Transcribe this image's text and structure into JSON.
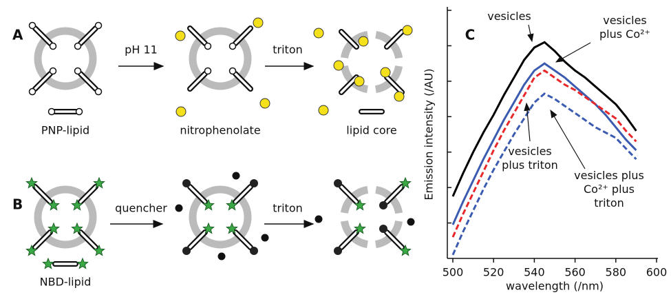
{
  "diagram": {
    "panel_a": {
      "label": "A",
      "step1": "pH 11",
      "step2": "triton",
      "lipid": "PNP-lipid",
      "middle": "nitrophenolate",
      "right": "lipid core"
    },
    "panel_b": {
      "label": "B",
      "step1": "quencher",
      "step2": "triton",
      "lipid": "NBD-lipid"
    }
  },
  "chart_data": {
    "type": "line",
    "panel_label": "C",
    "x_label": "wavelength (/nm)",
    "y_label": "Emission intensity (/AU)",
    "x": [
      500,
      505,
      510,
      515,
      520,
      525,
      530,
      535,
      540,
      545,
      550,
      555,
      560,
      565,
      570,
      575,
      580,
      585,
      590
    ],
    "xlim": [
      500,
      600
    ],
    "xticks": [
      500,
      520,
      540,
      560,
      580,
      600
    ],
    "ylim": [
      0,
      7
    ],
    "yticks": [
      1,
      2,
      3,
      4,
      5,
      6,
      7
    ],
    "series": [
      {
        "name": "vesicles",
        "color": "#000000",
        "dashed": false,
        "values": [
          1.75,
          2.4,
          3.0,
          3.55,
          4.05,
          4.6,
          5.1,
          5.6,
          5.95,
          6.1,
          5.85,
          5.55,
          5.3,
          5.1,
          4.85,
          4.6,
          4.35,
          4.0,
          3.6
        ]
      },
      {
        "name": "vesicles plus Co²⁺",
        "color": "#3b5bb0",
        "dashed": false,
        "values": [
          0.95,
          1.6,
          2.2,
          2.8,
          3.35,
          3.9,
          4.4,
          4.9,
          5.3,
          5.5,
          5.3,
          5.1,
          4.85,
          4.6,
          4.35,
          4.05,
          3.7,
          3.35,
          3.05
        ]
      },
      {
        "name": "vesicles plus triton",
        "color": "#e8282b",
        "dashed": true,
        "values": [
          0.6,
          1.25,
          1.85,
          2.45,
          3.05,
          3.6,
          4.1,
          4.6,
          5.1,
          5.3,
          5.1,
          4.9,
          4.75,
          4.55,
          4.35,
          4.15,
          3.95,
          3.6,
          3.3
        ]
      },
      {
        "name": "vesicles plus Co²⁺ plus triton",
        "color": "#3b5bb0",
        "dashed": true,
        "values": [
          0.1,
          0.75,
          1.35,
          1.95,
          2.5,
          3.0,
          3.5,
          3.95,
          4.4,
          4.65,
          4.5,
          4.3,
          4.1,
          3.9,
          3.7,
          3.55,
          3.4,
          3.1,
          2.8
        ]
      }
    ]
  }
}
